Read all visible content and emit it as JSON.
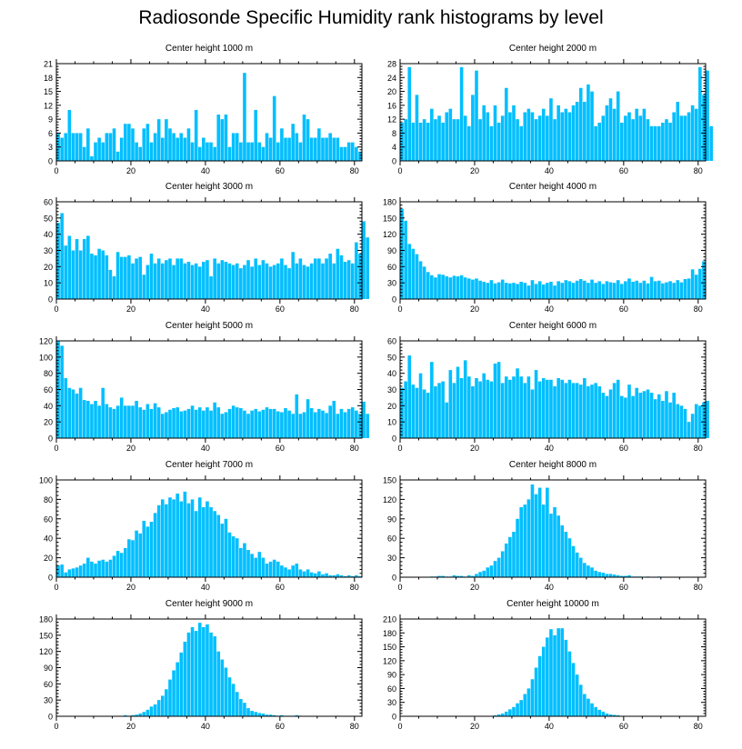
{
  "title": "Radiosonde Specific Humidity rank histograms by level",
  "colors": {
    "bar": "#00bfff",
    "axis": "#000000"
  },
  "chart_data": [
    {
      "type": "bar",
      "title": "Center height 1000 m",
      "ylim": [
        0,
        21
      ],
      "yticks": [
        0,
        3,
        6,
        9,
        12,
        15,
        18,
        21
      ],
      "xticks": [
        0,
        20,
        40,
        60,
        80
      ],
      "xlim": [
        0,
        82
      ],
      "values": [
        6,
        5,
        6,
        11,
        6,
        6,
        6,
        3,
        7,
        1,
        4,
        5,
        4,
        6,
        6,
        7,
        2,
        5,
        8,
        8,
        7,
        4,
        3,
        7,
        8,
        4,
        6,
        9,
        5,
        9,
        7,
        6,
        5,
        6,
        5,
        7,
        4,
        11,
        3,
        5,
        4,
        4,
        3,
        10,
        9,
        10,
        3,
        6,
        6,
        4,
        19,
        4,
        4,
        11,
        4,
        3,
        6,
        5,
        14,
        4,
        7,
        5,
        5,
        8,
        6,
        4,
        10,
        9,
        5,
        5,
        7,
        5,
        5,
        6,
        5,
        5,
        3,
        3,
        4,
        4,
        3,
        2
      ]
    },
    {
      "type": "bar",
      "title": "Center height 2000 m",
      "ylim": [
        0,
        28
      ],
      "yticks": [
        0,
        4,
        8,
        12,
        16,
        20,
        24,
        28
      ],
      "xticks": [
        0,
        20,
        40,
        60,
        80
      ],
      "xlim": [
        0,
        82
      ],
      "values": [
        11,
        12,
        27,
        11,
        19,
        11,
        12,
        11,
        15,
        12,
        13,
        11,
        14,
        15,
        12,
        12,
        27,
        13,
        10,
        19,
        26,
        12,
        16,
        14,
        10,
        16,
        11,
        13,
        21,
        14,
        16,
        12,
        10,
        14,
        15,
        14,
        12,
        13,
        15,
        13,
        18,
        12,
        16,
        14,
        15,
        14,
        16,
        17,
        21,
        17,
        22,
        20,
        10,
        11,
        13,
        16,
        18,
        15,
        20,
        11,
        13,
        14,
        12,
        15,
        13,
        15,
        12,
        10,
        10,
        10,
        11,
        12,
        11,
        14,
        17,
        13,
        13,
        14,
        16,
        15,
        27,
        19,
        26,
        10
      ]
    },
    {
      "type": "bar",
      "title": "Center height 3000 m",
      "ylim": [
        0,
        60
      ],
      "yticks": [
        0,
        10,
        20,
        30,
        40,
        50,
        60
      ],
      "xticks": [
        0,
        20,
        40,
        60,
        80
      ],
      "xlim": [
        0,
        82
      ],
      "values": [
        47,
        53,
        33,
        39,
        30,
        37,
        30,
        37,
        39,
        28,
        27,
        31,
        30,
        27,
        18,
        14,
        29,
        26,
        26,
        27,
        22,
        25,
        26,
        15,
        21,
        28,
        22,
        25,
        22,
        24,
        25,
        21,
        25,
        25,
        22,
        23,
        21,
        22,
        20,
        23,
        24,
        14,
        25,
        22,
        24,
        23,
        22,
        21,
        22,
        19,
        21,
        24,
        20,
        25,
        21,
        24,
        22,
        20,
        21,
        22,
        25,
        21,
        19,
        29,
        22,
        25,
        21,
        20,
        22,
        25,
        25,
        22,
        25,
        28,
        22,
        31,
        27,
        23,
        24,
        22,
        35,
        28,
        48,
        38
      ]
    },
    {
      "type": "bar",
      "title": "Center height 4000 m",
      "ylim": [
        0,
        180
      ],
      "yticks": [
        0,
        30,
        60,
        90,
        120,
        150,
        180
      ],
      "xticks": [
        0,
        20,
        40,
        60,
        80
      ],
      "xlim": [
        0,
        82
      ],
      "values": [
        167,
        145,
        102,
        93,
        83,
        70,
        60,
        50,
        44,
        40,
        46,
        45,
        42,
        40,
        43,
        42,
        44,
        40,
        38,
        36,
        38,
        34,
        32,
        30,
        35,
        29,
        31,
        36,
        30,
        29,
        30,
        28,
        32,
        30,
        25,
        35,
        28,
        33,
        27,
        30,
        32,
        25,
        33,
        30,
        35,
        33,
        30,
        34,
        37,
        34,
        30,
        36,
        30,
        33,
        28,
        33,
        31,
        30,
        35,
        28,
        33,
        38,
        32,
        34,
        30,
        34,
        29,
        41,
        33,
        34,
        29,
        31,
        33,
        30,
        35,
        31,
        37,
        38,
        55,
        45,
        56,
        70
      ]
    },
    {
      "type": "bar",
      "title": "Center height 5000 m",
      "ylim": [
        0,
        120
      ],
      "yticks": [
        0,
        20,
        40,
        60,
        80,
        100,
        120
      ],
      "xticks": [
        0,
        20,
        40,
        60,
        80
      ],
      "xlim": [
        0,
        82
      ],
      "values": [
        122,
        114,
        74,
        62,
        60,
        55,
        62,
        47,
        46,
        42,
        46,
        40,
        62,
        42,
        38,
        36,
        40,
        50,
        40,
        40,
        40,
        46,
        38,
        35,
        42,
        36,
        43,
        38,
        30,
        32,
        35,
        37,
        38,
        33,
        34,
        36,
        40,
        35,
        38,
        34,
        38,
        34,
        44,
        38,
        30,
        32,
        36,
        40,
        38,
        37,
        34,
        30,
        34,
        36,
        33,
        35,
        38,
        36,
        36,
        33,
        32,
        37,
        34,
        30,
        54,
        30,
        32,
        48,
        37,
        32,
        36,
        34,
        31,
        40,
        46,
        30,
        36,
        32,
        36,
        38,
        34,
        30,
        45,
        30
      ]
    },
    {
      "type": "bar",
      "title": "Center height 6000 m",
      "ylim": [
        0,
        60
      ],
      "yticks": [
        0,
        10,
        20,
        30,
        40,
        50,
        60
      ],
      "xticks": [
        0,
        20,
        40,
        60,
        80
      ],
      "xlim": [
        0,
        82
      ],
      "values": [
        31,
        35,
        51,
        33,
        31,
        40,
        30,
        28,
        47,
        32,
        34,
        35,
        22,
        42,
        34,
        44,
        37,
        48,
        38,
        32,
        37,
        35,
        40,
        36,
        35,
        46,
        47,
        34,
        38,
        36,
        38,
        43,
        38,
        34,
        38,
        30,
        42,
        35,
        37,
        36,
        36,
        32,
        37,
        36,
        34,
        36,
        34,
        34,
        33,
        37,
        32,
        33,
        34,
        32,
        28,
        26,
        30,
        34,
        36,
        26,
        25,
        33,
        26,
        31,
        28,
        29,
        30,
        28,
        24,
        27,
        23,
        29,
        22,
        28,
        21,
        20,
        18,
        10,
        15,
        21,
        20,
        22,
        23
      ]
    },
    {
      "type": "bar",
      "title": "Center height 7000 m",
      "ylim": [
        0,
        100
      ],
      "yticks": [
        0,
        20,
        40,
        60,
        80,
        100
      ],
      "xticks": [
        0,
        20,
        40,
        60,
        80
      ],
      "xlim": [
        0,
        82
      ],
      "values": [
        12,
        13,
        5,
        8,
        9,
        10,
        12,
        14,
        20,
        16,
        14,
        17,
        18,
        16,
        18,
        22,
        27,
        25,
        30,
        39,
        38,
        48,
        45,
        58,
        52,
        57,
        66,
        74,
        80,
        75,
        82,
        80,
        86,
        78,
        88,
        76,
        80,
        68,
        82,
        72,
        78,
        72,
        68,
        64,
        55,
        60,
        46,
        42,
        40,
        30,
        35,
        28,
        24,
        20,
        26,
        20,
        14,
        16,
        18,
        16,
        12,
        10,
        8,
        12,
        14,
        8,
        6,
        8,
        5,
        4,
        6,
        3,
        4,
        2,
        2,
        3,
        2,
        1,
        2,
        1,
        2,
        1
      ]
    },
    {
      "type": "bar",
      "title": "Center height 8000 m",
      "ylim": [
        0,
        150
      ],
      "yticks": [
        0,
        30,
        60,
        90,
        120,
        150
      ],
      "xticks": [
        0,
        20,
        40,
        60,
        80
      ],
      "xlim": [
        0,
        82
      ],
      "values": [
        0,
        0,
        0,
        0,
        0,
        0,
        0,
        0,
        1,
        1,
        2,
        2,
        1,
        1,
        3,
        2,
        2,
        1,
        3,
        2,
        5,
        8,
        10,
        15,
        18,
        25,
        30,
        40,
        52,
        62,
        70,
        90,
        108,
        112,
        120,
        143,
        128,
        138,
        112,
        138,
        98,
        108,
        95,
        80,
        70,
        60,
        48,
        38,
        30,
        22,
        18,
        15,
        10,
        8,
        7,
        5,
        5,
        4,
        3,
        2,
        2,
        3,
        1,
        1,
        1,
        0,
        1,
        0,
        0,
        1,
        0,
        0,
        0,
        0,
        0,
        0,
        0,
        0,
        0,
        0,
        0,
        0
      ]
    },
    {
      "type": "bar",
      "title": "Center height 9000 m",
      "ylim": [
        0,
        180
      ],
      "yticks": [
        0,
        30,
        60,
        90,
        120,
        150,
        180
      ],
      "xticks": [
        0,
        20,
        40,
        60,
        80
      ],
      "xlim": [
        0,
        82
      ],
      "values": [
        0,
        0,
        0,
        0,
        0,
        0,
        0,
        0,
        0,
        0,
        0,
        0,
        0,
        0,
        0,
        0,
        0,
        0,
        2,
        1,
        2,
        3,
        5,
        8,
        12,
        18,
        22,
        30,
        38,
        50,
        68,
        85,
        100,
        118,
        138,
        155,
        165,
        158,
        173,
        165,
        170,
        155,
        148,
        120,
        105,
        90,
        72,
        60,
        45,
        32,
        25,
        15,
        10,
        8,
        6,
        5,
        3,
        3,
        2,
        1,
        2,
        1,
        1,
        1,
        2,
        1,
        0,
        0,
        0,
        0,
        0,
        0,
        0,
        0,
        0,
        1,
        0,
        0,
        0,
        0,
        0,
        0
      ]
    },
    {
      "type": "bar",
      "title": "Center height 10000 m",
      "ylim": [
        0,
        210
      ],
      "yticks": [
        0,
        30,
        60,
        90,
        120,
        150,
        180,
        210
      ],
      "xticks": [
        0,
        20,
        40,
        60,
        80
      ],
      "xlim": [
        0,
        82
      ],
      "values": [
        0,
        0,
        0,
        0,
        0,
        0,
        0,
        0,
        0,
        0,
        0,
        0,
        0,
        0,
        0,
        0,
        0,
        0,
        0,
        0,
        0,
        0,
        0,
        0,
        0,
        2,
        4,
        6,
        10,
        15,
        20,
        28,
        35,
        48,
        60,
        80,
        105,
        130,
        150,
        170,
        188,
        175,
        190,
        190,
        165,
        140,
        115,
        90,
        68,
        48,
        38,
        28,
        20,
        14,
        10,
        6,
        4,
        3,
        2,
        1,
        1,
        0,
        0,
        0,
        0,
        0,
        0,
        0,
        0,
        0,
        0,
        0,
        0,
        0,
        0,
        0,
        0,
        0,
        0,
        0,
        0,
        0
      ]
    }
  ]
}
